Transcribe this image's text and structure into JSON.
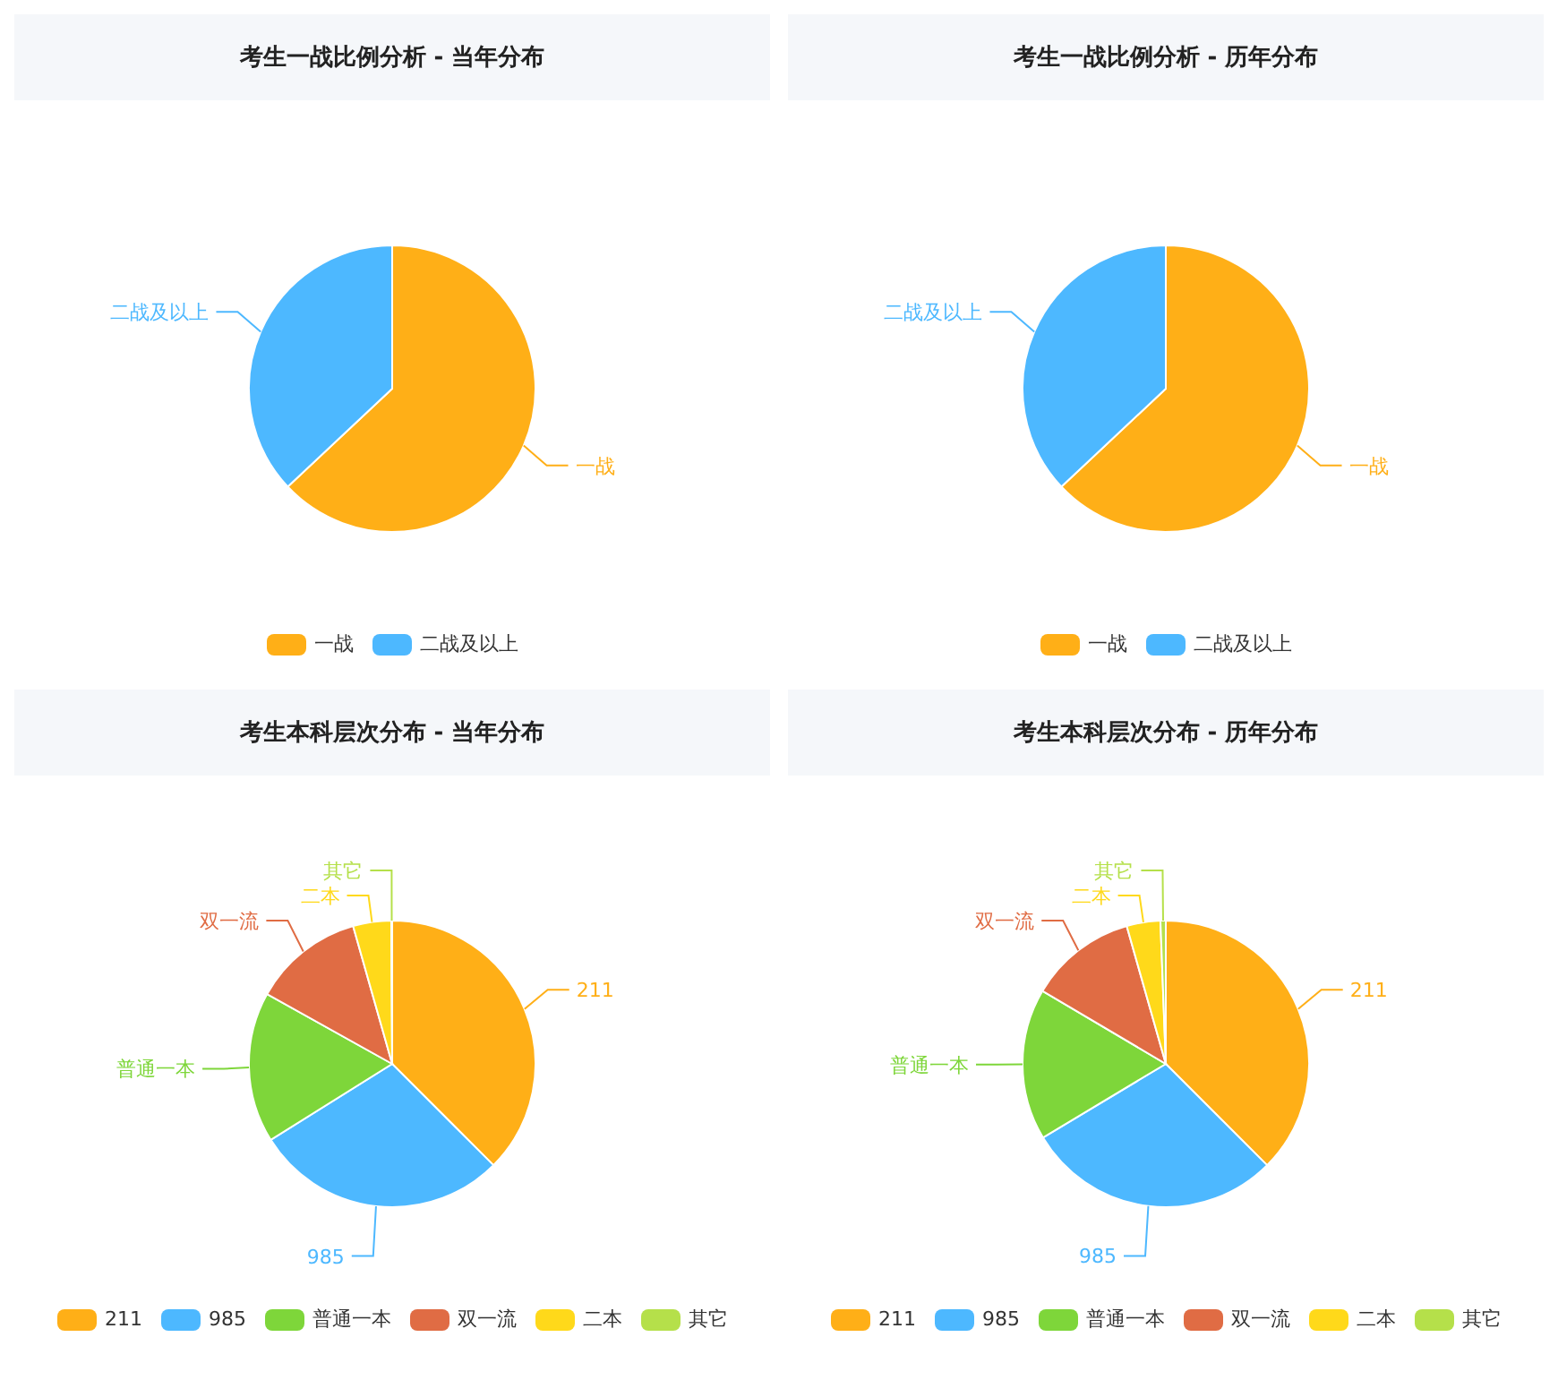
{
  "chart_data": [
    {
      "type": "pie",
      "title": "考生一战比例分析 - 当年分布",
      "categories": [
        "一战",
        "二战及以上"
      ],
      "values": [
        63,
        37
      ],
      "colors": [
        "#ffaf17",
        "#4db8ff"
      ],
      "legend": "bottom"
    },
    {
      "type": "pie",
      "title": "考生一战比例分析 - 历年分布",
      "categories": [
        "一战",
        "二战及以上"
      ],
      "values": [
        63,
        37
      ],
      "colors": [
        "#ffaf17",
        "#4db8ff"
      ],
      "legend": "bottom"
    },
    {
      "type": "pie",
      "title": "考生本科层次分布 - 当年分布",
      "categories": [
        "211",
        "985",
        "普通一本",
        "双一流",
        "二本",
        "其它"
      ],
      "values": [
        37.5,
        28.6,
        17,
        12.5,
        4.3,
        0.1
      ],
      "colors": [
        "#ffaf17",
        "#4db8ff",
        "#7ed63a",
        "#e06c44",
        "#ffd91a",
        "#b5e04a"
      ],
      "legend": "bottom"
    },
    {
      "type": "pie",
      "title": "考生本科层次分布 - 历年分布",
      "categories": [
        "211",
        "985",
        "普通一本",
        "双一流",
        "二本",
        "其它"
      ],
      "values": [
        37.5,
        28.9,
        17.1,
        12.1,
        3.8,
        0.6
      ],
      "colors": [
        "#ffaf17",
        "#4db8ff",
        "#7ed63a",
        "#e06c44",
        "#ffd91a",
        "#b5e04a"
      ],
      "legend": "bottom"
    }
  ]
}
